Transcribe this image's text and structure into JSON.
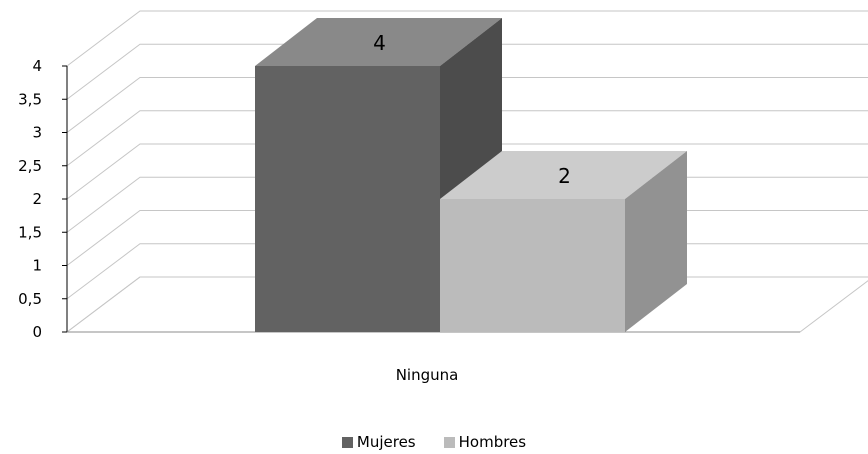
{
  "chart_data": {
    "type": "bar",
    "categories": [
      "Ninguna"
    ],
    "series": [
      {
        "name": "Mujeres",
        "values": [
          4
        ],
        "color": "#626262"
      },
      {
        "name": "Hombres",
        "values": [
          2
        ],
        "color": "#bbbbbb"
      }
    ],
    "ylim": [
      0,
      4
    ],
    "yticks": [
      "0",
      "0,5",
      "1",
      "1,5",
      "2",
      "2,5",
      "3",
      "3,5",
      "4"
    ],
    "grid": true,
    "legend_position": "bottom",
    "data_labels": [
      "4",
      "2"
    ]
  }
}
